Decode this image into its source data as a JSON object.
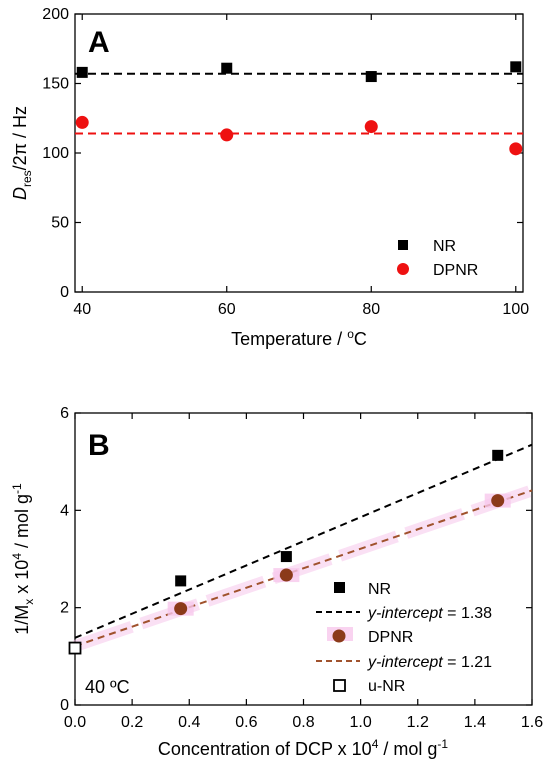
{
  "chart_data": [
    {
      "panel_label": "A",
      "type": "scatter",
      "xlabel": "Temperature / ",
      "xlabel_unit_sup": "o",
      "xlabel_unit": "C",
      "ylabel_main": "D",
      "ylabel_sub": "res",
      "ylabel_rest": "/2π  / Hz",
      "xlim": [
        39,
        101
      ],
      "ylim": [
        0,
        200
      ],
      "xticks": [
        "40",
        "60",
        "80",
        "100"
      ],
      "yticks": [
        "0",
        "50",
        "100",
        "150",
        "200"
      ],
      "legend_position": "bottom-right",
      "series": [
        {
          "name": "NR",
          "marker": "square-filled",
          "color": "#000000",
          "x": [
            40,
            60,
            80,
            100
          ],
          "y": [
            158,
            161,
            155,
            162
          ],
          "fit": 157
        },
        {
          "name": "DPNR",
          "marker": "circle-filled",
          "color": "#ee1111",
          "x": [
            40,
            60,
            80,
            100
          ],
          "y": [
            122,
            113,
            119,
            103
          ],
          "fit": 114
        }
      ]
    },
    {
      "panel_label": "B",
      "type": "scatter",
      "annotation": "40 ºC",
      "xlabel": "Concentration of DCP x 10",
      "xlabel_sup": "4",
      "xlabel_rest": " / mol g",
      "xlabel_sup2": "-1",
      "ylabel_a": "1/M",
      "ylabel_sub": "x",
      "ylabel_b": " x 10",
      "ylabel_sup": "4",
      "ylabel_c": " / mol g",
      "ylabel_sup2": "-1",
      "xlim": [
        0,
        1.6
      ],
      "ylim": [
        0,
        6
      ],
      "xticks": [
        "0.0",
        "0.2",
        "0.4",
        "0.6",
        "0.8",
        "1.0",
        "1.2",
        "1.4",
        "1.6"
      ],
      "yticks": [
        "0",
        "2",
        "4",
        "6"
      ],
      "legend_position": "bottom-right",
      "series": [
        {
          "name": "NR",
          "marker": "square-filled",
          "color": "#000000",
          "x": [
            0.37,
            0.74,
            1.48
          ],
          "y": [
            2.55,
            3.05,
            5.13
          ]
        },
        {
          "name": "DPNR",
          "marker": "circle-filled",
          "color": "#8b3a1a",
          "x": [
            0.37,
            0.74,
            1.48
          ],
          "y": [
            1.98,
            2.67,
            4.2
          ]
        },
        {
          "name": "u-NR",
          "marker": "square-open",
          "color": "#000000",
          "x": [
            0.0
          ],
          "y": [
            1.17
          ]
        }
      ],
      "fits": [
        {
          "label_italic": "y-intercept",
          "label_rest": " = 1.38",
          "intercept": 1.38,
          "slope": 2.48,
          "color": "#000000"
        },
        {
          "label_italic": "y-intercept",
          "label_rest": " = 1.21",
          "intercept": 1.21,
          "slope": 2.0,
          "color": "#a0522d"
        }
      ]
    }
  ]
}
